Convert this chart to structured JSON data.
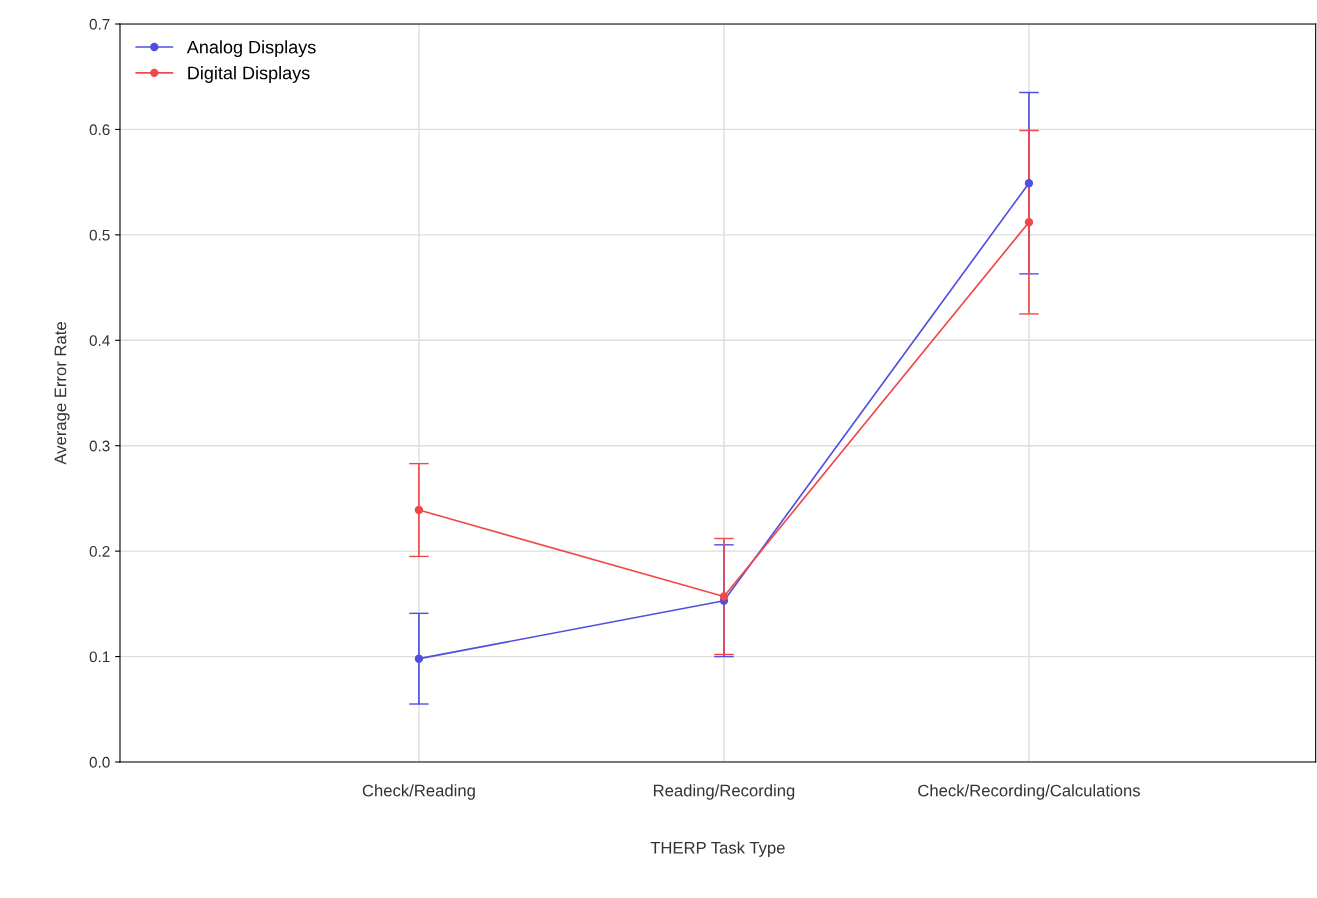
{
  "chart_data": {
    "type": "line",
    "xlabel": "THERP Task Type",
    "ylabel": "Average Error Rate",
    "categories": [
      "Check/Reading",
      "Reading/Recording",
      "Check/Recording/Calculations"
    ],
    "series": [
      {
        "name": "Analog Displays",
        "color": "#5050e0",
        "values": [
          0.098,
          0.153,
          0.549
        ],
        "errors": [
          0.043,
          0.053,
          0.086
        ]
      },
      {
        "name": "Digital Displays",
        "color": "#f04848",
        "values": [
          0.239,
          0.157,
          0.512
        ],
        "errors": [
          0.044,
          0.055,
          0.087
        ]
      }
    ],
    "ylim": [
      0,
      0.7
    ],
    "yticks": [
      {
        "value": 0,
        "label": "0.0"
      },
      0.1,
      0.2,
      0.3,
      0.4,
      0.5,
      0.6,
      0.7
    ],
    "grid": true,
    "legend": "top left",
    "marker": "circle",
    "line_style": "solid"
  }
}
